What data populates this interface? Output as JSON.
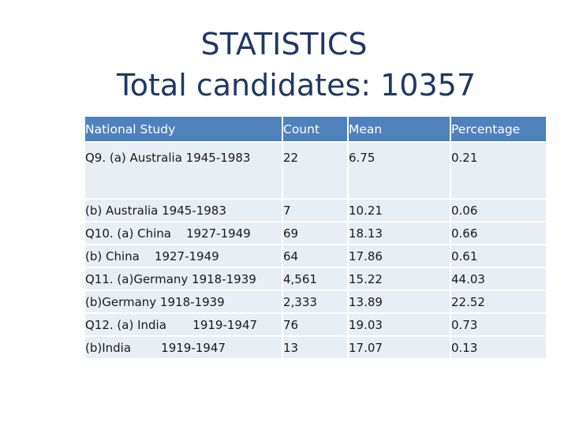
{
  "title": {
    "line1": "STATISTICS",
    "line2": "Total candidates: 10357"
  },
  "table": {
    "headers": {
      "study": "National Study",
      "count": "Count",
      "mean": "Mean",
      "percentage": "Percentage"
    },
    "rows": [
      {
        "study": "Q9. (a) Australia 1945-1983",
        "count": "22",
        "mean": "6.75",
        "percentage": "0.21"
      },
      {
        "study": "(b) Australia 1945-1983",
        "count": "7",
        "mean": "10.21",
        "percentage": "0.06"
      },
      {
        "study": "Q10. (a) China    1927-1949",
        "count": "69",
        "mean": "18.13",
        "percentage": "0.66"
      },
      {
        "study": "(b) China    1927-1949",
        "count": "64",
        "mean": "17.86",
        "percentage": "0.61"
      },
      {
        "study": "Q11. (a)Germany 1918-1939",
        "count": "4,561",
        "mean": "15.22",
        "percentage": "44.03"
      },
      {
        "study": "(b)Germany 1918-1939",
        "count": "2,333",
        "mean": "13.89",
        "percentage": "22.52"
      },
      {
        "study": "Q12. (a) India       1919-1947",
        "count": "76",
        "mean": "19.03",
        "percentage": "0.73"
      },
      {
        "study": "(b)India        1919-1947",
        "count": "13",
        "mean": "17.07",
        "percentage": "0.13"
      }
    ]
  },
  "colors": {
    "title": "#1f3864",
    "header_bg": "#4f81bd",
    "header_text": "#ffffff",
    "cell_bg": "#e9edf4"
  }
}
